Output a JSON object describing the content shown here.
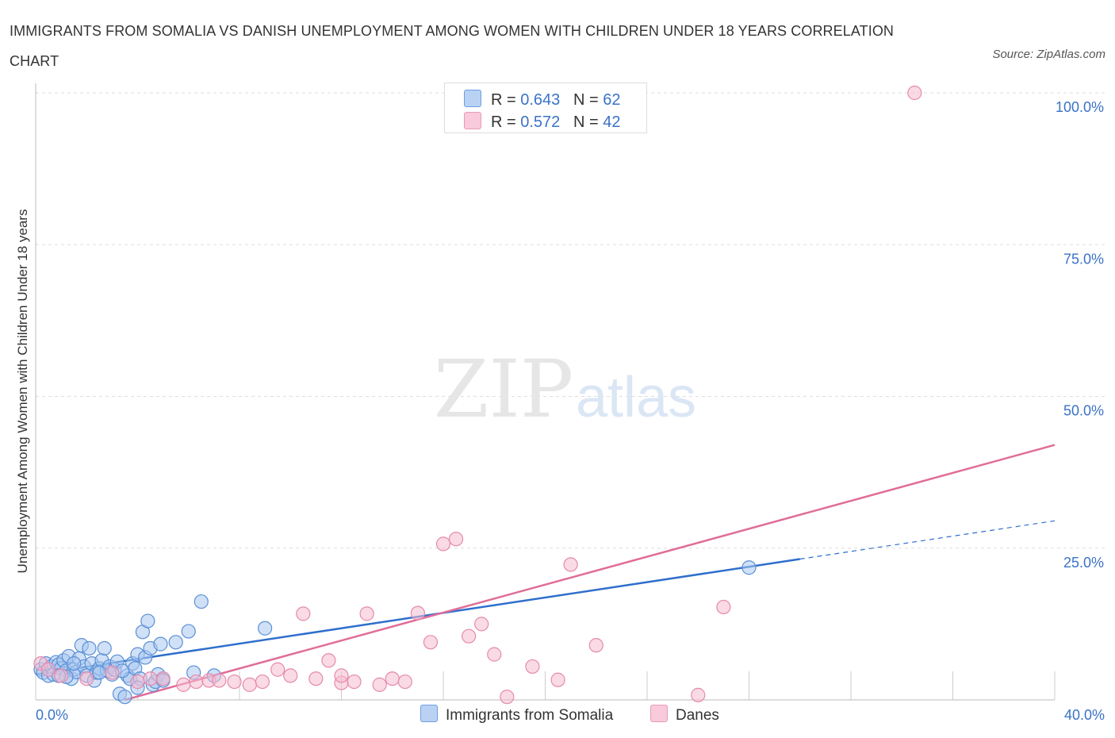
{
  "title": "IMMIGRANTS FROM SOMALIA VS DANISH UNEMPLOYMENT AMONG WOMEN WITH CHILDREN UNDER 18 YEARS CORRELATION CHART",
  "source": "Source: ZipAtlas.com",
  "watermark": {
    "zip": "ZIP",
    "atlas": "atlas"
  },
  "colors": {
    "somalia_fill": "#a9c8f0",
    "somalia_stroke": "#5b8fd6",
    "somalia_line": "#2f6fcc",
    "danes_fill": "#f5bcd0",
    "danes_stroke": "#e48aac",
    "danes_line": "#e06d98",
    "axis_label": "#3a73c6",
    "grid": "#dddddd"
  },
  "legend": {
    "r_label": "R =",
    "n_label": "N =",
    "somalia": {
      "r": "0.643",
      "n": "62"
    },
    "danes": {
      "r": "0.572",
      "n": "42"
    }
  },
  "chart_data": {
    "type": "scatter",
    "title": "IMMIGRANTS FROM SOMALIA VS DANISH UNEMPLOYMENT AMONG WOMEN WITH CHILDREN UNDER 18 YEARS CORRELATION CHART",
    "xlabel": "",
    "ylabel": "Unemployment Among Women with Children Under 18 years",
    "xlim": [
      0,
      40
    ],
    "ylim": [
      0,
      100
    ],
    "x_tick_labels": [
      "0.0%",
      "40.0%"
    ],
    "y_ticks": [
      25,
      50,
      75,
      100
    ],
    "y_tick_labels": [
      "25.0%",
      "50.0%",
      "75.0%",
      "100.0%"
    ],
    "grid": "horizontal dashed",
    "legend_placement": "top-center and bottom",
    "series": [
      {
        "name": "Immigrants from Somalia",
        "r": 0.643,
        "n": 62,
        "trend": {
          "x0": 0,
          "y0": 4.2,
          "x1": 30,
          "y1": 23.2,
          "dashed_to_x": 40,
          "dashed_to_y": 29.5
        },
        "points": [
          [
            0.2,
            5.0
          ],
          [
            0.3,
            4.5
          ],
          [
            0.4,
            6.0
          ],
          [
            0.5,
            4.0
          ],
          [
            0.6,
            5.5
          ],
          [
            0.7,
            4.2
          ],
          [
            0.8,
            6.2
          ],
          [
            0.9,
            5.8
          ],
          [
            1.0,
            5.2
          ],
          [
            1.1,
            6.5
          ],
          [
            1.2,
            4.8
          ],
          [
            1.3,
            7.2
          ],
          [
            1.4,
            3.5
          ],
          [
            1.5,
            5.0
          ],
          [
            1.6,
            4.6
          ],
          [
            1.7,
            6.8
          ],
          [
            1.8,
            9.0
          ],
          [
            1.9,
            5.5
          ],
          [
            2.0,
            4.0
          ],
          [
            2.1,
            8.5
          ],
          [
            2.2,
            6.0
          ],
          [
            2.3,
            3.2
          ],
          [
            2.4,
            4.5
          ],
          [
            2.5,
            5.2
          ],
          [
            2.6,
            6.5
          ],
          [
            2.7,
            8.5
          ],
          [
            2.8,
            4.8
          ],
          [
            2.9,
            5.5
          ],
          [
            3.0,
            4.2
          ],
          [
            3.1,
            5.0
          ],
          [
            3.2,
            6.3
          ],
          [
            3.3,
            1.0
          ],
          [
            3.5,
            0.5
          ],
          [
            3.6,
            4.0
          ],
          [
            3.7,
            3.5
          ],
          [
            3.8,
            6.0
          ],
          [
            3.9,
            5.2
          ],
          [
            4.0,
            7.5
          ],
          [
            4.1,
            3.5
          ],
          [
            4.2,
            11.2
          ],
          [
            4.3,
            7.0
          ],
          [
            4.4,
            13.0
          ],
          [
            4.5,
            8.5
          ],
          [
            4.6,
            2.5
          ],
          [
            4.7,
            3.0
          ],
          [
            4.8,
            4.2
          ],
          [
            4.9,
            9.2
          ],
          [
            5.0,
            3.5
          ],
          [
            5.5,
            9.5
          ],
          [
            6.0,
            11.3
          ],
          [
            6.2,
            4.5
          ],
          [
            6.5,
            16.2
          ],
          [
            7.0,
            4.0
          ],
          [
            9.0,
            11.8
          ],
          [
            28.0,
            21.8
          ],
          [
            1.2,
            3.8
          ],
          [
            2.5,
            4.5
          ],
          [
            3.4,
            4.8
          ],
          [
            4.0,
            2.0
          ],
          [
            5.0,
            3.2
          ],
          [
            0.9,
            4.0
          ],
          [
            1.5,
            6.0
          ]
        ]
      },
      {
        "name": "Danes",
        "r": 0.572,
        "n": 42,
        "trend": {
          "x0": 3.5,
          "y0": 0.0,
          "x1": 40,
          "y1": 42.0
        },
        "points": [
          [
            0.2,
            6.0
          ],
          [
            0.5,
            5.0
          ],
          [
            1.0,
            4.0
          ],
          [
            2.0,
            3.5
          ],
          [
            3.0,
            4.5
          ],
          [
            4.0,
            3.0
          ],
          [
            5.0,
            3.5
          ],
          [
            5.8,
            2.5
          ],
          [
            6.3,
            3.0
          ],
          [
            6.8,
            3.2
          ],
          [
            7.2,
            3.2
          ],
          [
            7.8,
            3.0
          ],
          [
            8.4,
            2.5
          ],
          [
            8.9,
            3.0
          ],
          [
            9.5,
            5.0
          ],
          [
            10.0,
            4.0
          ],
          [
            10.5,
            14.2
          ],
          [
            11.0,
            3.5
          ],
          [
            11.5,
            6.5
          ],
          [
            12.0,
            2.8
          ],
          [
            12.5,
            3.0
          ],
          [
            13.0,
            14.2
          ],
          [
            13.5,
            2.5
          ],
          [
            14.0,
            3.5
          ],
          [
            14.5,
            3.0
          ],
          [
            15.0,
            14.3
          ],
          [
            15.5,
            9.5
          ],
          [
            16.0,
            25.7
          ],
          [
            16.5,
            26.5
          ],
          [
            17.0,
            10.5
          ],
          [
            17.5,
            12.5
          ],
          [
            18.0,
            7.5
          ],
          [
            18.5,
            0.5
          ],
          [
            19.5,
            5.5
          ],
          [
            20.5,
            3.3
          ],
          [
            21.0,
            22.3
          ],
          [
            22.0,
            9.0
          ],
          [
            26.0,
            0.8
          ],
          [
            27.0,
            15.3
          ],
          [
            34.5,
            100.0
          ],
          [
            12.0,
            4.0
          ],
          [
            4.5,
            3.5
          ]
        ]
      }
    ]
  }
}
